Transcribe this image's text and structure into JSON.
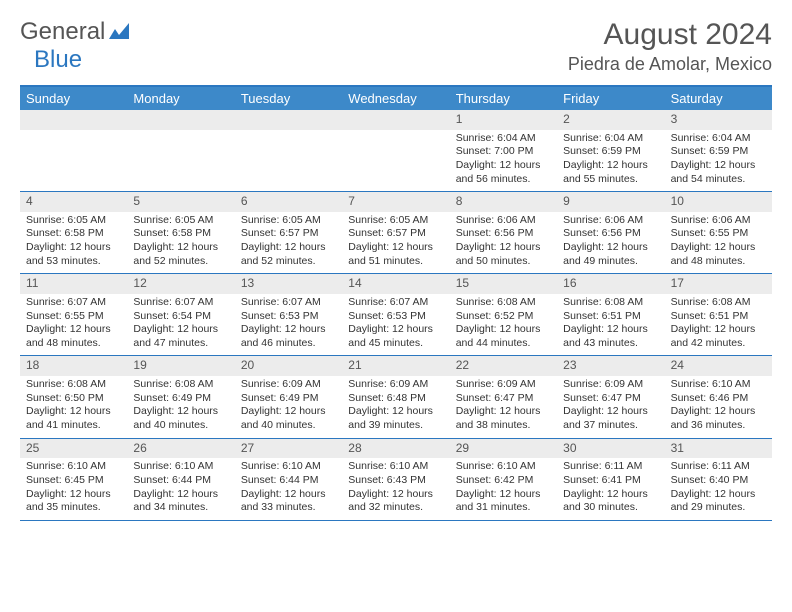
{
  "logo": {
    "text1": "General",
    "text2": "Blue"
  },
  "title": "August 2024",
  "location": "Piedra de Amolar, Mexico",
  "colors": {
    "header_bg": "#3d89c9",
    "border": "#2b77c0",
    "daynum_bg": "#ececec",
    "text": "#333333",
    "title_text": "#555555"
  },
  "day_headers": [
    "Sunday",
    "Monday",
    "Tuesday",
    "Wednesday",
    "Thursday",
    "Friday",
    "Saturday"
  ],
  "weeks": [
    [
      {
        "num": "",
        "sunrise": "",
        "sunset": "",
        "daylight": ""
      },
      {
        "num": "",
        "sunrise": "",
        "sunset": "",
        "daylight": ""
      },
      {
        "num": "",
        "sunrise": "",
        "sunset": "",
        "daylight": ""
      },
      {
        "num": "",
        "sunrise": "",
        "sunset": "",
        "daylight": ""
      },
      {
        "num": "1",
        "sunrise": "Sunrise: 6:04 AM",
        "sunset": "Sunset: 7:00 PM",
        "daylight": "Daylight: 12 hours and 56 minutes."
      },
      {
        "num": "2",
        "sunrise": "Sunrise: 6:04 AM",
        "sunset": "Sunset: 6:59 PM",
        "daylight": "Daylight: 12 hours and 55 minutes."
      },
      {
        "num": "3",
        "sunrise": "Sunrise: 6:04 AM",
        "sunset": "Sunset: 6:59 PM",
        "daylight": "Daylight: 12 hours and 54 minutes."
      }
    ],
    [
      {
        "num": "4",
        "sunrise": "Sunrise: 6:05 AM",
        "sunset": "Sunset: 6:58 PM",
        "daylight": "Daylight: 12 hours and 53 minutes."
      },
      {
        "num": "5",
        "sunrise": "Sunrise: 6:05 AM",
        "sunset": "Sunset: 6:58 PM",
        "daylight": "Daylight: 12 hours and 52 minutes."
      },
      {
        "num": "6",
        "sunrise": "Sunrise: 6:05 AM",
        "sunset": "Sunset: 6:57 PM",
        "daylight": "Daylight: 12 hours and 52 minutes."
      },
      {
        "num": "7",
        "sunrise": "Sunrise: 6:05 AM",
        "sunset": "Sunset: 6:57 PM",
        "daylight": "Daylight: 12 hours and 51 minutes."
      },
      {
        "num": "8",
        "sunrise": "Sunrise: 6:06 AM",
        "sunset": "Sunset: 6:56 PM",
        "daylight": "Daylight: 12 hours and 50 minutes."
      },
      {
        "num": "9",
        "sunrise": "Sunrise: 6:06 AM",
        "sunset": "Sunset: 6:56 PM",
        "daylight": "Daylight: 12 hours and 49 minutes."
      },
      {
        "num": "10",
        "sunrise": "Sunrise: 6:06 AM",
        "sunset": "Sunset: 6:55 PM",
        "daylight": "Daylight: 12 hours and 48 minutes."
      }
    ],
    [
      {
        "num": "11",
        "sunrise": "Sunrise: 6:07 AM",
        "sunset": "Sunset: 6:55 PM",
        "daylight": "Daylight: 12 hours and 48 minutes."
      },
      {
        "num": "12",
        "sunrise": "Sunrise: 6:07 AM",
        "sunset": "Sunset: 6:54 PM",
        "daylight": "Daylight: 12 hours and 47 minutes."
      },
      {
        "num": "13",
        "sunrise": "Sunrise: 6:07 AM",
        "sunset": "Sunset: 6:53 PM",
        "daylight": "Daylight: 12 hours and 46 minutes."
      },
      {
        "num": "14",
        "sunrise": "Sunrise: 6:07 AM",
        "sunset": "Sunset: 6:53 PM",
        "daylight": "Daylight: 12 hours and 45 minutes."
      },
      {
        "num": "15",
        "sunrise": "Sunrise: 6:08 AM",
        "sunset": "Sunset: 6:52 PM",
        "daylight": "Daylight: 12 hours and 44 minutes."
      },
      {
        "num": "16",
        "sunrise": "Sunrise: 6:08 AM",
        "sunset": "Sunset: 6:51 PM",
        "daylight": "Daylight: 12 hours and 43 minutes."
      },
      {
        "num": "17",
        "sunrise": "Sunrise: 6:08 AM",
        "sunset": "Sunset: 6:51 PM",
        "daylight": "Daylight: 12 hours and 42 minutes."
      }
    ],
    [
      {
        "num": "18",
        "sunrise": "Sunrise: 6:08 AM",
        "sunset": "Sunset: 6:50 PM",
        "daylight": "Daylight: 12 hours and 41 minutes."
      },
      {
        "num": "19",
        "sunrise": "Sunrise: 6:08 AM",
        "sunset": "Sunset: 6:49 PM",
        "daylight": "Daylight: 12 hours and 40 minutes."
      },
      {
        "num": "20",
        "sunrise": "Sunrise: 6:09 AM",
        "sunset": "Sunset: 6:49 PM",
        "daylight": "Daylight: 12 hours and 40 minutes."
      },
      {
        "num": "21",
        "sunrise": "Sunrise: 6:09 AM",
        "sunset": "Sunset: 6:48 PM",
        "daylight": "Daylight: 12 hours and 39 minutes."
      },
      {
        "num": "22",
        "sunrise": "Sunrise: 6:09 AM",
        "sunset": "Sunset: 6:47 PM",
        "daylight": "Daylight: 12 hours and 38 minutes."
      },
      {
        "num": "23",
        "sunrise": "Sunrise: 6:09 AM",
        "sunset": "Sunset: 6:47 PM",
        "daylight": "Daylight: 12 hours and 37 minutes."
      },
      {
        "num": "24",
        "sunrise": "Sunrise: 6:10 AM",
        "sunset": "Sunset: 6:46 PM",
        "daylight": "Daylight: 12 hours and 36 minutes."
      }
    ],
    [
      {
        "num": "25",
        "sunrise": "Sunrise: 6:10 AM",
        "sunset": "Sunset: 6:45 PM",
        "daylight": "Daylight: 12 hours and 35 minutes."
      },
      {
        "num": "26",
        "sunrise": "Sunrise: 6:10 AM",
        "sunset": "Sunset: 6:44 PM",
        "daylight": "Daylight: 12 hours and 34 minutes."
      },
      {
        "num": "27",
        "sunrise": "Sunrise: 6:10 AM",
        "sunset": "Sunset: 6:44 PM",
        "daylight": "Daylight: 12 hours and 33 minutes."
      },
      {
        "num": "28",
        "sunrise": "Sunrise: 6:10 AM",
        "sunset": "Sunset: 6:43 PM",
        "daylight": "Daylight: 12 hours and 32 minutes."
      },
      {
        "num": "29",
        "sunrise": "Sunrise: 6:10 AM",
        "sunset": "Sunset: 6:42 PM",
        "daylight": "Daylight: 12 hours and 31 minutes."
      },
      {
        "num": "30",
        "sunrise": "Sunrise: 6:11 AM",
        "sunset": "Sunset: 6:41 PM",
        "daylight": "Daylight: 12 hours and 30 minutes."
      },
      {
        "num": "31",
        "sunrise": "Sunrise: 6:11 AM",
        "sunset": "Sunset: 6:40 PM",
        "daylight": "Daylight: 12 hours and 29 minutes."
      }
    ]
  ]
}
